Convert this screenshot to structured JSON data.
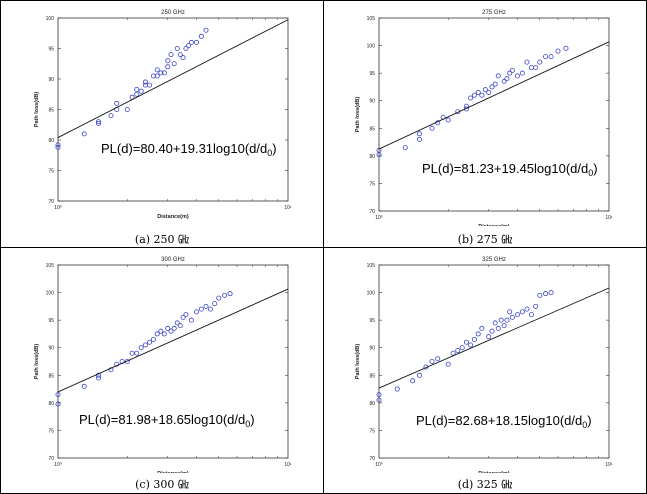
{
  "chart_data": [
    {
      "type": "scatter",
      "title": "250 GHz",
      "xlabel": "Distance(m)",
      "ylabel": "Path loss(dB)",
      "xscale": "log",
      "xlim": [
        1,
        10
      ],
      "ylim": [
        70,
        100
      ],
      "yticks": [
        70,
        75,
        80,
        85,
        90,
        95,
        100
      ],
      "xtick_labels": [
        "10⁰",
        "10¹"
      ],
      "fit": {
        "intercept": 80.4,
        "slope": 19.31
      },
      "equation": "PL(d)=80.40+19.31log10(d/d",
      "equation_sub": "0",
      "equation_end": ")",
      "caption": "(a) 250 ㎓",
      "x": [
        1.0,
        1.0,
        1.3,
        1.5,
        1.5,
        1.7,
        1.8,
        1.8,
        2.0,
        2.1,
        2.2,
        2.2,
        2.3,
        2.4,
        2.4,
        2.5,
        2.6,
        2.7,
        2.7,
        2.8,
        2.9,
        3.0,
        3.0,
        3.1,
        3.2,
        3.3,
        3.4,
        3.5,
        3.6,
        3.7,
        3.8,
        4.0,
        4.2,
        4.4
      ],
      "y": [
        78.8,
        79.2,
        81.0,
        82.7,
        83.0,
        84.0,
        85.0,
        86.0,
        85.0,
        87.0,
        87.5,
        88.3,
        88.0,
        89.0,
        89.5,
        89.0,
        90.5,
        90.5,
        91.5,
        91.0,
        91.0,
        92.0,
        93.0,
        94.0,
        92.5,
        95.0,
        94.0,
        93.5,
        95.0,
        95.5,
        96.0,
        96.0,
        97.0,
        98.0
      ]
    },
    {
      "type": "scatter",
      "title": "275 GHz",
      "xlabel": "Distance(m)",
      "ylabel": "Path loss(dB)",
      "xscale": "log",
      "xlim": [
        1,
        10
      ],
      "ylim": [
        70,
        105
      ],
      "yticks": [
        70,
        75,
        80,
        85,
        90,
        95,
        100,
        105
      ],
      "xtick_labels": [
        "10⁰",
        "10¹"
      ],
      "fit": {
        "intercept": 81.23,
        "slope": 19.45
      },
      "equation": "PL(d)=81.23+19.45log10(d/d",
      "equation_sub": "0",
      "equation_end": ")",
      "caption": "(b) 275 ㎓",
      "x": [
        1.0,
        1.0,
        1.3,
        1.5,
        1.5,
        1.7,
        1.8,
        1.9,
        2.0,
        2.2,
        2.4,
        2.4,
        2.5,
        2.6,
        2.7,
        2.8,
        2.9,
        3.0,
        3.1,
        3.2,
        3.3,
        3.5,
        3.6,
        3.7,
        3.8,
        4.0,
        4.2,
        4.4,
        4.6,
        4.8,
        5.0,
        5.3,
        5.6,
        6.0,
        6.5
      ],
      "y": [
        80.2,
        81.0,
        81.5,
        83.0,
        84.0,
        85.0,
        86.0,
        87.0,
        86.5,
        88.0,
        88.5,
        89.0,
        90.5,
        91.0,
        91.5,
        91.0,
        92.0,
        91.5,
        92.5,
        93.0,
        94.5,
        93.5,
        94.0,
        95.0,
        95.5,
        94.5,
        95.0,
        97.0,
        96.0,
        96.0,
        97.0,
        98.0,
        98.0,
        99.0,
        99.5
      ]
    },
    {
      "type": "scatter",
      "title": "300 GHz",
      "xlabel": "Distance(m)",
      "ylabel": "Path loss(dB)",
      "xscale": "log",
      "xlim": [
        1,
        10
      ],
      "ylim": [
        70,
        105
      ],
      "yticks": [
        70,
        75,
        80,
        85,
        90,
        95,
        100,
        105
      ],
      "xtick_labels": [
        "10⁰",
        "10¹"
      ],
      "fit": {
        "intercept": 81.98,
        "slope": 18.65
      },
      "equation": "PL(d)=81.98+18.65log10(d/d",
      "equation_sub": "0",
      "equation_end": ")",
      "caption": "(c) 300 ㎓",
      "x": [
        1.0,
        1.0,
        1.3,
        1.5,
        1.5,
        1.7,
        1.8,
        1.9,
        2.0,
        2.1,
        2.2,
        2.3,
        2.4,
        2.5,
        2.6,
        2.7,
        2.8,
        2.9,
        3.0,
        3.1,
        3.2,
        3.3,
        3.4,
        3.5,
        3.6,
        3.8,
        4.0,
        4.2,
        4.4,
        4.6,
        4.8,
        5.0,
        5.3,
        5.6
      ],
      "y": [
        79.8,
        81.5,
        83.0,
        84.5,
        85.0,
        86.0,
        87.0,
        87.5,
        87.5,
        89.0,
        89.0,
        90.0,
        90.5,
        91.0,
        91.5,
        92.5,
        93.0,
        92.5,
        93.5,
        93.0,
        93.5,
        94.5,
        94.0,
        95.5,
        96.0,
        95.0,
        96.5,
        97.0,
        97.5,
        97.0,
        98.0,
        99.0,
        99.5,
        99.8
      ]
    },
    {
      "type": "scatter",
      "title": "325 GHz",
      "xlabel": "Distance(m)",
      "ylabel": "Path loss(dB)",
      "xscale": "log",
      "xlim": [
        1,
        10
      ],
      "ylim": [
        70,
        105
      ],
      "yticks": [
        70,
        75,
        80,
        85,
        90,
        95,
        100,
        105
      ],
      "xtick_labels": [
        "10⁰",
        "10¹"
      ],
      "fit": {
        "intercept": 82.68,
        "slope": 18.15
      },
      "equation": "PL(d)=82.68+18.15log10(d/d",
      "equation_sub": "0",
      "equation_end": ")",
      "caption": "(d) 325 ㎓",
      "x": [
        1.0,
        1.0,
        1.2,
        1.4,
        1.5,
        1.6,
        1.7,
        1.8,
        2.0,
        2.1,
        2.2,
        2.3,
        2.4,
        2.5,
        2.6,
        2.7,
        2.8,
        3.0,
        3.1,
        3.2,
        3.3,
        3.4,
        3.5,
        3.6,
        3.7,
        3.8,
        4.0,
        4.2,
        4.4,
        4.6,
        4.8,
        5.0,
        5.3,
        5.6
      ],
      "y": [
        80.5,
        81.5,
        82.5,
        84.0,
        85.0,
        86.5,
        87.5,
        88.0,
        87.0,
        89.0,
        89.5,
        90.0,
        91.0,
        90.5,
        91.5,
        92.5,
        93.5,
        92.0,
        93.0,
        94.5,
        93.5,
        95.0,
        94.0,
        95.0,
        96.5,
        95.5,
        96.0,
        96.5,
        97.0,
        96.0,
        97.5,
        99.5,
        99.8,
        100.0
      ]
    }
  ]
}
